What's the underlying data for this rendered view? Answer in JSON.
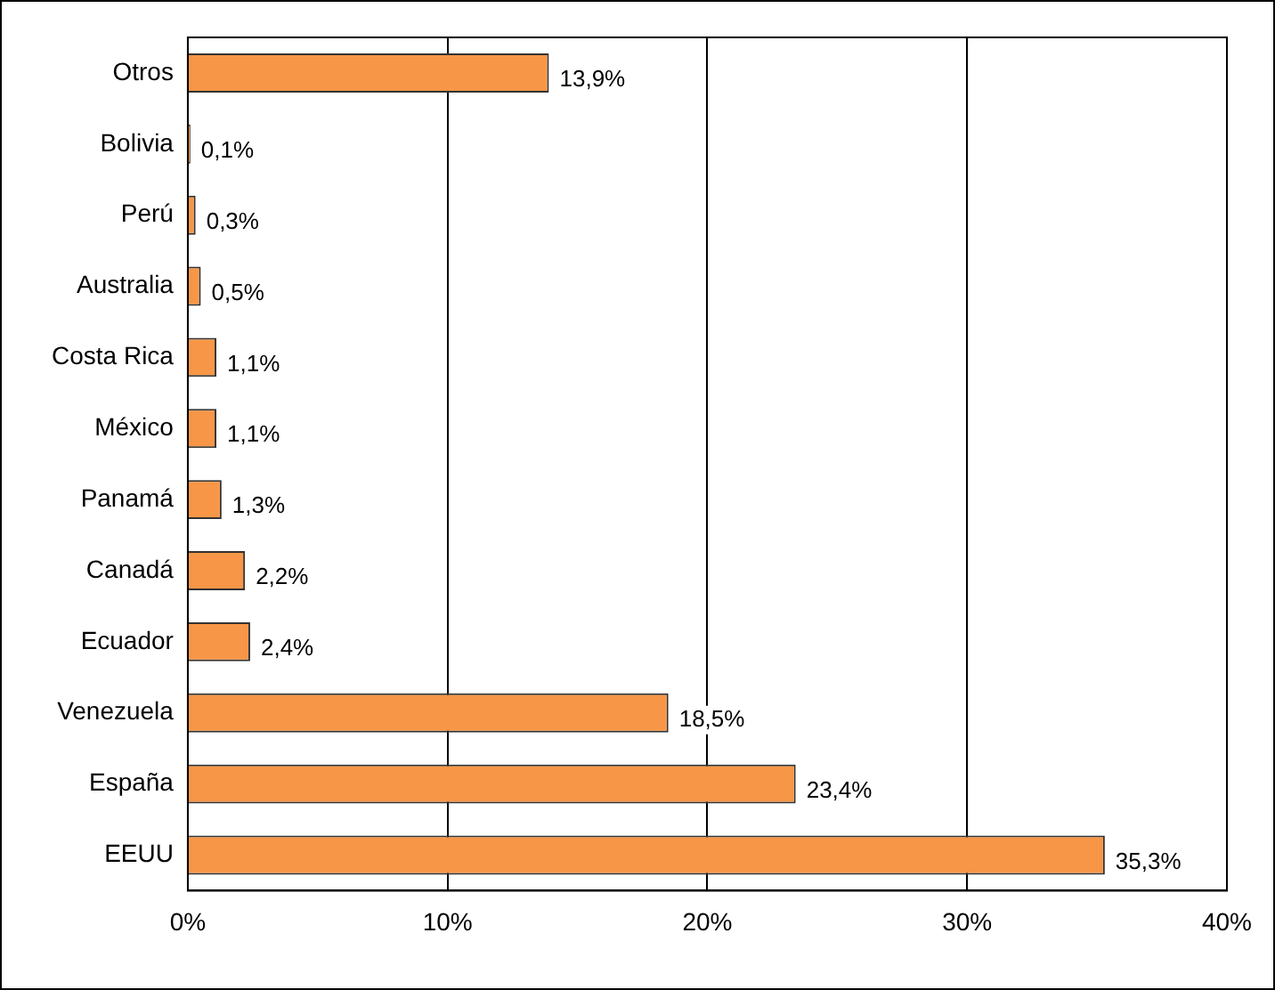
{
  "chart_data": {
    "type": "bar",
    "orientation": "horizontal",
    "categories": [
      "Otros",
      "Bolivia",
      "Perú",
      "Australia",
      "Costa Rica",
      "México",
      "Panamá",
      "Canadá",
      "Ecuador",
      "Venezuela",
      "España",
      "EEUU"
    ],
    "values": [
      13.9,
      0.1,
      0.3,
      0.5,
      1.1,
      1.1,
      1.3,
      2.2,
      2.4,
      18.5,
      23.4,
      35.3
    ],
    "value_labels": [
      "13,9%",
      "0,1%",
      "0,3%",
      "0,5%",
      "1,1%",
      "1,1%",
      "1,3%",
      "2,2%",
      "2,4%",
      "18,5%",
      "23,4%",
      "35,3%"
    ],
    "color": "#f79646",
    "xlim": [
      0,
      40
    ],
    "xticks": [
      {
        "value": 0,
        "label": "0%"
      },
      {
        "value": 10,
        "label": "10%"
      },
      {
        "value": 20,
        "label": "20%"
      },
      {
        "value": 30,
        "label": "30%"
      },
      {
        "value": 40,
        "label": "40%"
      }
    ],
    "grid": "x",
    "legend": false
  }
}
